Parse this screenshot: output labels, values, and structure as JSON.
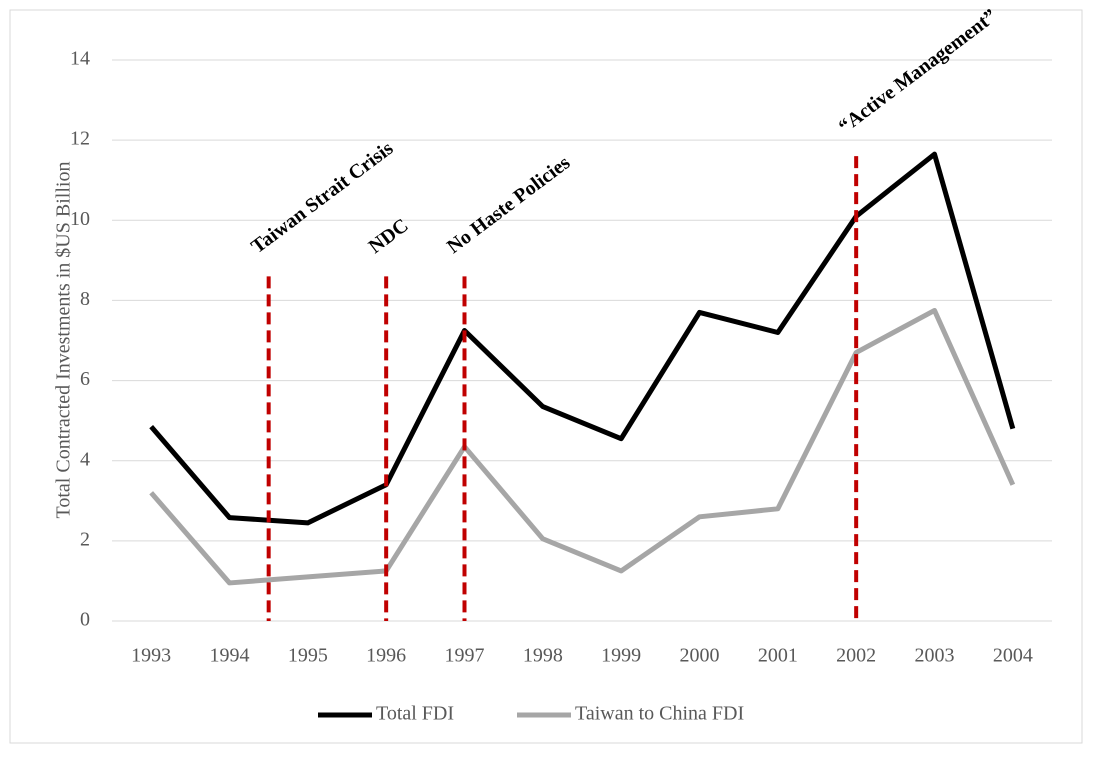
{
  "chart_data": {
    "type": "line",
    "y_label": "Total Contracted Investments in $US Billion",
    "categories": [
      "1993",
      "1994",
      "1995",
      "1996",
      "1997",
      "1998",
      "1999",
      "2000",
      "2001",
      "2002",
      "2003",
      "2004"
    ],
    "series": [
      {
        "name": "Total FDI",
        "color": "#000000",
        "values": [
          4.85,
          2.58,
          2.45,
          3.4,
          7.25,
          5.35,
          4.55,
          7.7,
          7.2,
          10.1,
          11.65,
          4.8
        ]
      },
      {
        "name": "Taiwan to China FDI",
        "color": "#a6a6a6",
        "values": [
          3.2,
          0.95,
          1.1,
          1.25,
          4.35,
          2.05,
          1.25,
          2.6,
          2.8,
          6.7,
          7.75,
          3.4
        ]
      }
    ],
    "ylim": [
      0,
      14
    ],
    "yticks": [
      0,
      2,
      4,
      6,
      8,
      10,
      12,
      14
    ],
    "grid": true,
    "legend": "bottom",
    "annotations": [
      {
        "text": "Taiwan Strait Crisis",
        "x": 1994.5,
        "y": 8.6,
        "color": "#c00000"
      },
      {
        "text": "NDC",
        "x": 1996,
        "y": 8.6,
        "color": "#c00000"
      },
      {
        "text": "No Haste Policies",
        "x": 1997,
        "y": 8.6,
        "color": "#c00000"
      },
      {
        "text": "“Active Management”",
        "x": 2002,
        "y": 11.6,
        "color": "#c00000"
      }
    ]
  }
}
